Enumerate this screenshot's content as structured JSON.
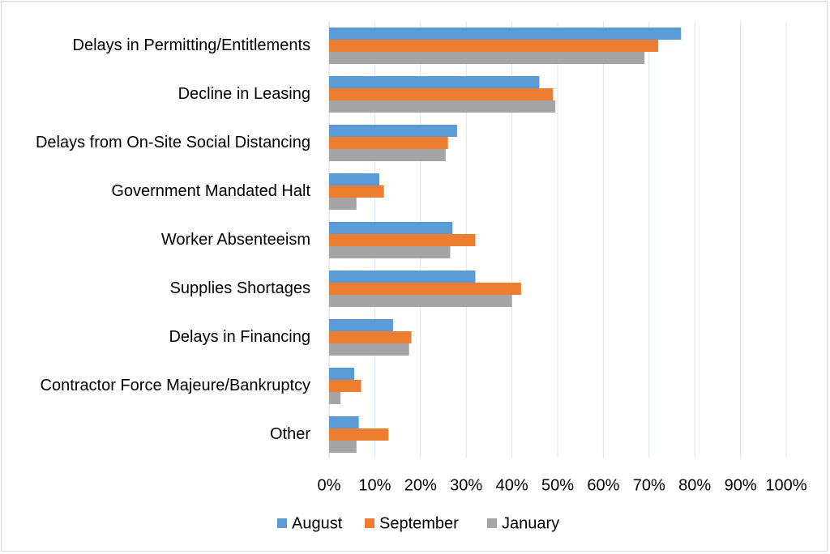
{
  "chart_data": {
    "type": "bar",
    "orientation": "horizontal",
    "categories": [
      "Delays in Permitting/Entitlements",
      "Decline in Leasing",
      "Delays from On-Site Social Distancing",
      "Government Mandated Halt",
      "Worker Absenteeism",
      "Supplies Shortages",
      "Delays in Financing",
      "Contractor Force Majeure/Bankruptcy",
      "Other"
    ],
    "series": [
      {
        "name": "August",
        "color": "#5b9bd5",
        "values": [
          77,
          46,
          28,
          11,
          27,
          32,
          14,
          5.5,
          6.5
        ]
      },
      {
        "name": "September",
        "color": "#ed7d31",
        "values": [
          72,
          49,
          26,
          12,
          32,
          42,
          18,
          7,
          13
        ]
      },
      {
        "name": "January",
        "color": "#a5a5a5",
        "values": [
          69,
          49.5,
          25.5,
          6,
          26.5,
          40,
          17.5,
          2.5,
          6
        ]
      }
    ],
    "xlim": [
      0,
      100
    ],
    "x_ticks": [
      "0%",
      "10%",
      "20%",
      "30%",
      "40%",
      "50%",
      "60%",
      "70%",
      "80%",
      "90%",
      "100%"
    ],
    "grid": true,
    "legend_position": "bottom"
  }
}
